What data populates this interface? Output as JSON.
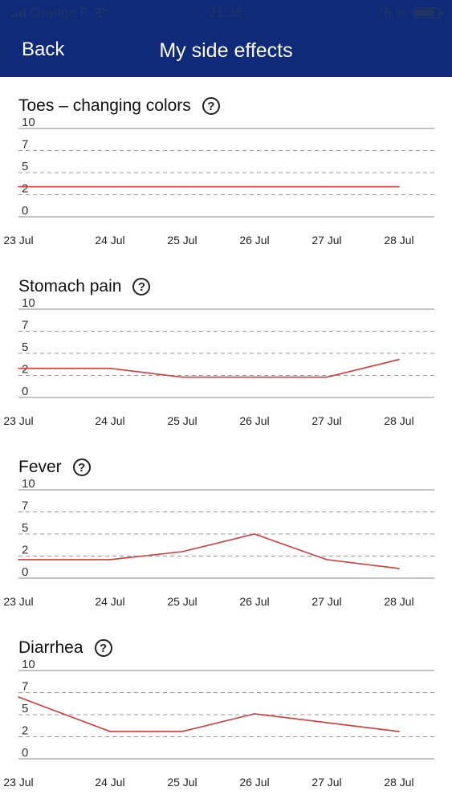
{
  "status_bar": {
    "carrier": "Orange F",
    "time": "21:35",
    "battery_text": "78 %",
    "battery_level": 0.78
  },
  "nav": {
    "back_label": "Back",
    "title": "My side effects"
  },
  "colors": {
    "nav_bg": "#0f2a78",
    "series_line": "#d23a3a"
  },
  "icons": {
    "help": "?"
  },
  "chart_data": [
    {
      "type": "line",
      "title": "Toes – changing colors",
      "categories": [
        "23 Jul",
        "24 Jul",
        "25 Jul",
        "26 Jul",
        "27 Jul",
        "28 Jul"
      ],
      "y_ticks": [
        "10",
        "7",
        "5",
        "2",
        "0"
      ],
      "ylim": [
        0,
        10
      ],
      "values": [
        3.4,
        3.4,
        3.4,
        3.4,
        3.4,
        3.4
      ]
    },
    {
      "type": "line",
      "title": "Stomach pain",
      "categories": [
        "23 Jul",
        "24 Jul",
        "25 Jul",
        "26 Jul",
        "27 Jul",
        "28 Jul"
      ],
      "y_ticks": [
        "10",
        "7",
        "5",
        "2",
        "0"
      ],
      "ylim": [
        0,
        10
      ],
      "values": [
        3.3,
        3.3,
        2.3,
        2.3,
        2.3,
        4.3
      ]
    },
    {
      "type": "line",
      "title": "Fever",
      "categories": [
        "23 Jul",
        "24 Jul",
        "25 Jul",
        "26 Jul",
        "27 Jul",
        "28 Jul"
      ],
      "y_ticks": [
        "10",
        "7",
        "5",
        "2",
        "0"
      ],
      "ylim": [
        0,
        10
      ],
      "values": [
        2.1,
        2.1,
        3.0,
        5.0,
        2.1,
        1.1
      ]
    },
    {
      "type": "line",
      "title": "Diarrhea",
      "categories": [
        "23 Jul",
        "24 Jul",
        "25 Jul",
        "26 Jul",
        "27 Jul",
        "28 Jul"
      ],
      "y_ticks": [
        "10",
        "7",
        "5",
        "2",
        "0"
      ],
      "ylim": [
        0,
        10
      ],
      "values": [
        7.0,
        3.1,
        3.1,
        5.1,
        4.1,
        3.1
      ]
    }
  ]
}
